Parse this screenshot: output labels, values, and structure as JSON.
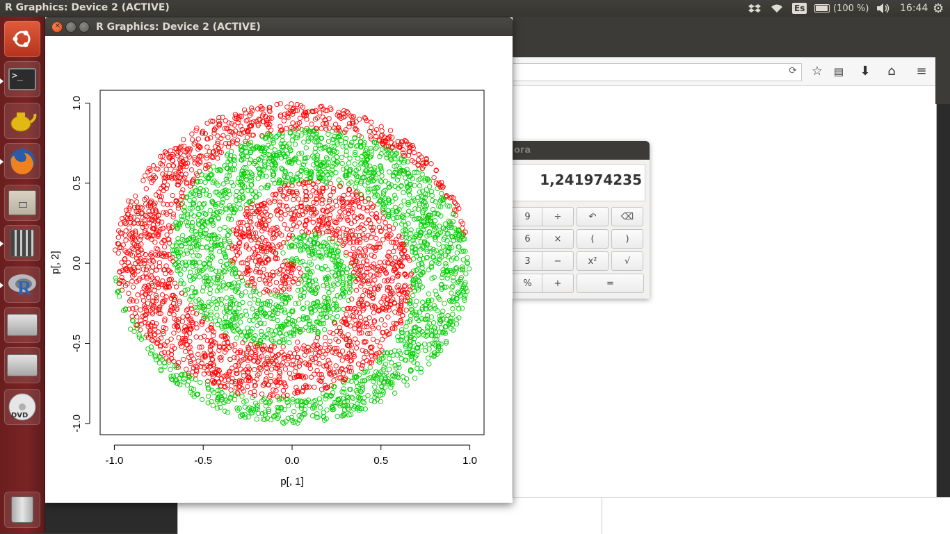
{
  "topbar": {
    "window_title": "R Graphics: Device 2 (ACTIVE)",
    "keyboard_layout": "Es",
    "battery": "(100 %)",
    "clock": "16:44",
    "icons": [
      "dropbox-icon",
      "wifi-icon",
      "keyboard-icon",
      "battery-icon",
      "volume-icon",
      "settings-gear-icon"
    ]
  },
  "launcher": {
    "items": [
      {
        "name": "ubuntu-dash-icon"
      },
      {
        "name": "terminal-icon"
      },
      {
        "name": "teapot-app-icon"
      },
      {
        "name": "firefox-icon"
      },
      {
        "name": "file-manager-icon"
      },
      {
        "name": "calculator-icon"
      },
      {
        "name": "r-icon"
      },
      {
        "name": "drive-icon"
      },
      {
        "name": "drive-icon"
      },
      {
        "name": "dvd-icon"
      },
      {
        "name": "trash-icon"
      }
    ]
  },
  "rwindow": {
    "title": "R Graphics: Device 2 (ACTIVE)"
  },
  "calculator": {
    "title_partial": "ora",
    "display": "1,241974235",
    "buttons": [
      [
        "9",
        "÷",
        "↶",
        "⌫"
      ],
      [
        "6",
        "×",
        "(",
        ")"
      ],
      [
        "3",
        "−",
        "x²",
        "√"
      ],
      [
        "%",
        "+",
        "="
      ]
    ]
  },
  "chart_data": {
    "type": "scatter",
    "title": "",
    "xlabel": "p[, 1]",
    "ylabel": "p[, 2]",
    "xlim": [
      -1.08,
      1.08
    ],
    "ylim": [
      -1.07,
      1.08
    ],
    "xticks": [
      "-1.0",
      "-0.5",
      "0.0",
      "0.5",
      "1.0"
    ],
    "yticks": [
      "-1.0",
      "-0.5",
      "0.0",
      "0.5",
      "1.0"
    ],
    "grid": false,
    "marker": "open circle",
    "series": [
      {
        "color": "#ff0000",
        "description": "points in red bands of the spiral"
      },
      {
        "color": "#00cd00",
        "description": "points in green bands of the spiral"
      }
    ],
    "n_points_approx": 4800,
    "domain": "unit disk, radius 1"
  }
}
